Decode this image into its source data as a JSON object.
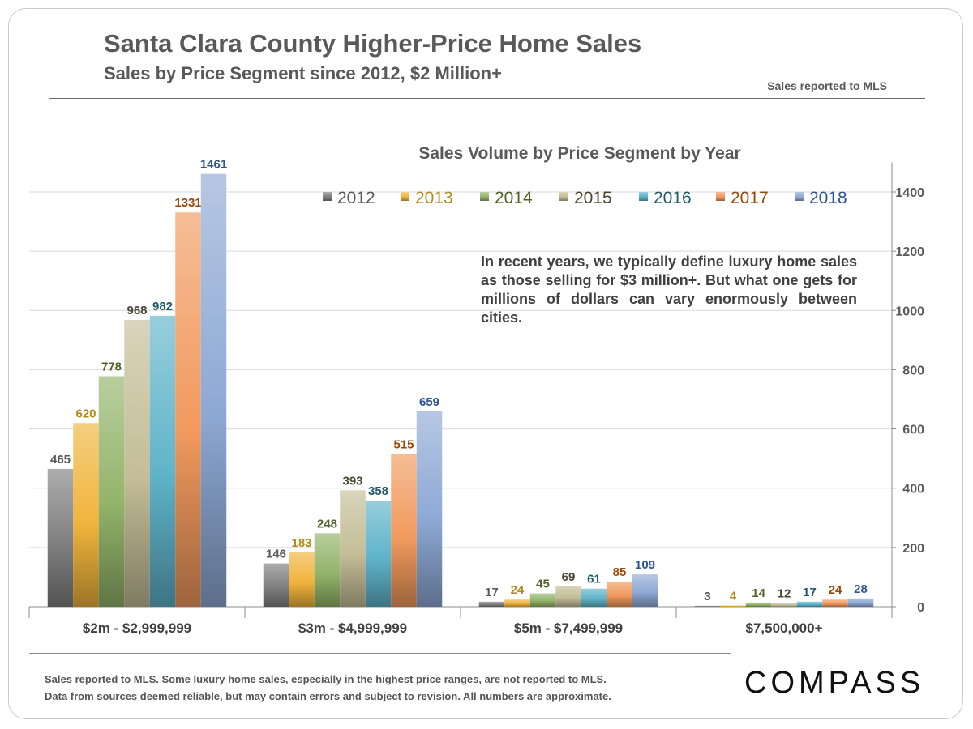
{
  "header": {
    "title": "Santa Clara County Higher-Price Home Sales",
    "subtitle": "Sales by Price Segment since 2012, $2 Million+",
    "source_tag": "Sales reported to MLS"
  },
  "annotation": "In recent years, we typically define luxury home sales as those selling for $3 million+. But what one gets for millions of dollars can vary enormously between cities.",
  "footer": {
    "line1": "Sales reported to MLS. Some luxury home sales, especially in the highest price ranges, are not reported to MLS.",
    "line2": "Data from sources deemed reliable, but may contain errors and subject to revision.  All numbers are approximate.",
    "logo_text": "COMPASS"
  },
  "chart_data": {
    "type": "bar",
    "title": "Sales Volume by Price Segment by Year",
    "xlabel": "",
    "ylabel": "",
    "ylim": [
      0,
      1500
    ],
    "yticks": [
      0,
      200,
      400,
      600,
      800,
      1000,
      1200,
      1400
    ],
    "y_axis_side": "right",
    "grid": true,
    "legend_position": "top",
    "categories": [
      "$2m  - $2,999,999",
      "$3m  - $4,999,999",
      "$5m  - $7,499,999",
      "$7,500,000+"
    ],
    "series": [
      {
        "name": "2012",
        "color": "#7f7f7f",
        "label_color": "#595959",
        "values": [
          465,
          146,
          17,
          3
        ]
      },
      {
        "name": "2013",
        "color": "#f0b43c",
        "label_color": "#b38b1e",
        "values": [
          620,
          183,
          24,
          4
        ]
      },
      {
        "name": "2014",
        "color": "#93b46a",
        "label_color": "#4f6228",
        "values": [
          778,
          248,
          45,
          14
        ]
      },
      {
        "name": "2015",
        "color": "#c4bd97",
        "label_color": "#4a4530",
        "values": [
          968,
          393,
          69,
          12
        ]
      },
      {
        "name": "2016",
        "color": "#5fb3c9",
        "label_color": "#215968",
        "values": [
          982,
          358,
          61,
          17
        ]
      },
      {
        "name": "2017",
        "color": "#f19a5e",
        "label_color": "#974806",
        "values": [
          1331,
          515,
          85,
          24
        ]
      },
      {
        "name": "2018",
        "color": "#8ea9d4",
        "label_color": "#2f5496",
        "values": [
          1461,
          659,
          109,
          28
        ]
      }
    ]
  }
}
